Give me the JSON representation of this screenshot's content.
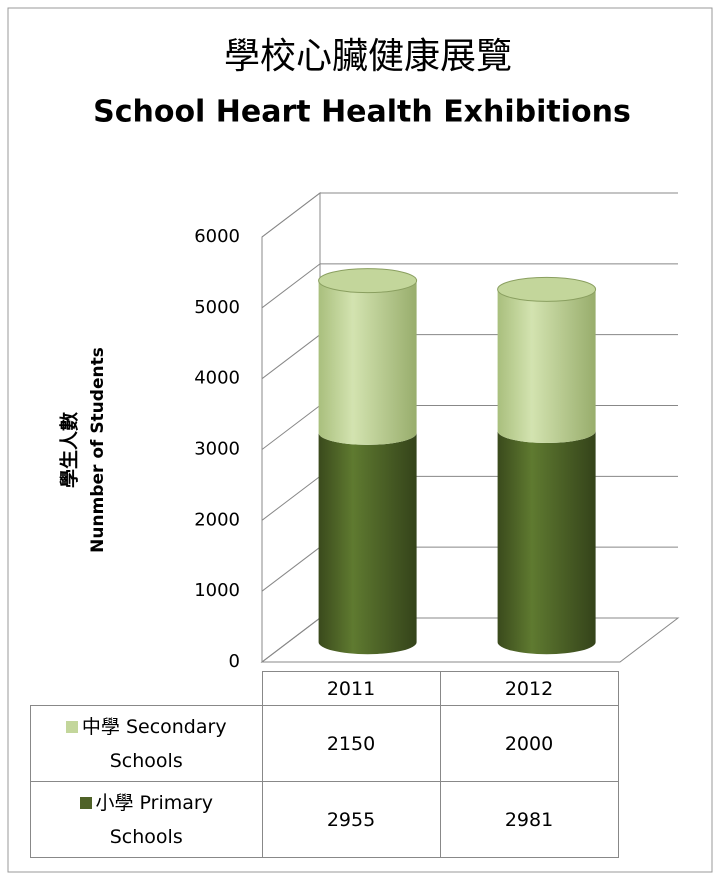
{
  "chart_data": {
    "type": "bar3d_cylinder_stacked",
    "title": "學校心臟健康展覽",
    "subtitle": "School Heart Health Exhibitions",
    "y_label": [
      "學生人數",
      "Nunmber of Students"
    ],
    "categories": [
      "2011",
      "2012"
    ],
    "series": [
      {
        "name": "小學 Primary Schools",
        "color": "#4f6228",
        "values": [
          2955,
          2981
        ]
      },
      {
        "name": "中學 Secondary Schools",
        "color": "#c3d69b",
        "values": [
          2150,
          2000
        ]
      }
    ],
    "ylim": [
      0,
      6000
    ],
    "yticks": [
      0,
      1000,
      2000,
      3000,
      4000,
      5000,
      6000
    ],
    "grid": true
  }
}
